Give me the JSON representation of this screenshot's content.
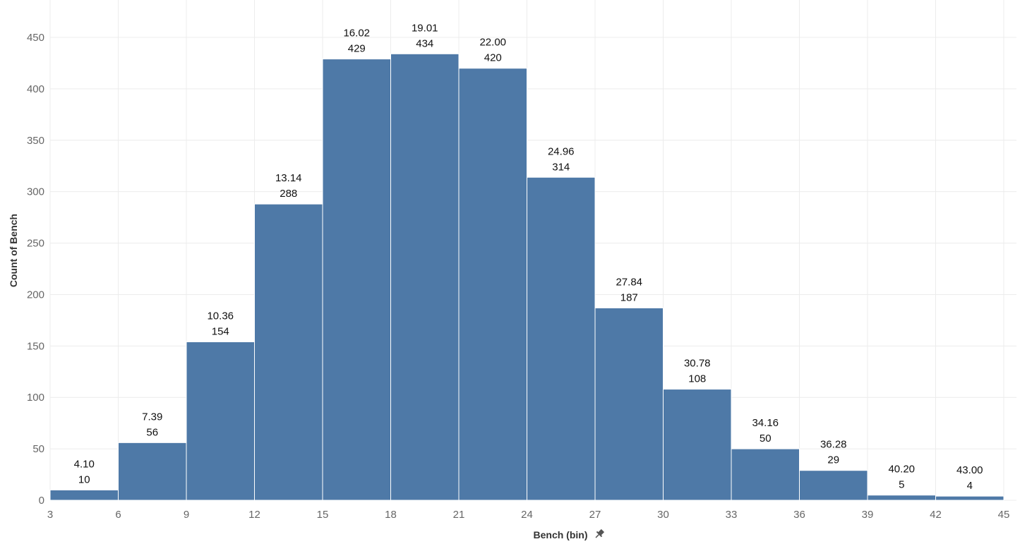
{
  "chart_data": {
    "type": "bar",
    "xlabel": "Bench (bin)",
    "ylabel": "Count of Bench",
    "xlim": [
      3,
      45
    ],
    "ylim": [
      0,
      450
    ],
    "x_ticks": [
      3,
      6,
      9,
      12,
      15,
      18,
      21,
      24,
      27,
      30,
      33,
      36,
      39,
      42,
      45
    ],
    "y_ticks": [
      0,
      50,
      100,
      150,
      200,
      250,
      300,
      350,
      400,
      450
    ],
    "grid": true,
    "bar_color": "#4e79a7",
    "pin_icon": "pin-icon",
    "bins": [
      {
        "start": 3,
        "end": 6,
        "count": 10,
        "avg": "4.10"
      },
      {
        "start": 6,
        "end": 9,
        "count": 56,
        "avg": "7.39"
      },
      {
        "start": 9,
        "end": 12,
        "count": 154,
        "avg": "10.36"
      },
      {
        "start": 12,
        "end": 15,
        "count": 288,
        "avg": "13.14"
      },
      {
        "start": 15,
        "end": 18,
        "count": 429,
        "avg": "16.02"
      },
      {
        "start": 18,
        "end": 21,
        "count": 434,
        "avg": "19.01"
      },
      {
        "start": 21,
        "end": 24,
        "count": 420,
        "avg": "22.00"
      },
      {
        "start": 24,
        "end": 27,
        "count": 314,
        "avg": "24.96"
      },
      {
        "start": 27,
        "end": 30,
        "count": 187,
        "avg": "27.84"
      },
      {
        "start": 30,
        "end": 33,
        "count": 108,
        "avg": "30.78"
      },
      {
        "start": 33,
        "end": 36,
        "count": 50,
        "avg": "34.16"
      },
      {
        "start": 36,
        "end": 39,
        "count": 29,
        "avg": "36.28"
      },
      {
        "start": 39,
        "end": 42,
        "count": 5,
        "avg": "40.20"
      },
      {
        "start": 42,
        "end": 45,
        "count": 4,
        "avg": "43.00"
      }
    ]
  }
}
